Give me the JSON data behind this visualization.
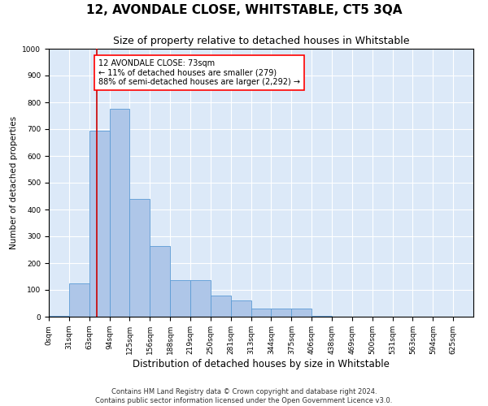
{
  "title": "12, AVONDALE CLOSE, WHITSTABLE, CT5 3QA",
  "subtitle": "Size of property relative to detached houses in Whitstable",
  "xlabel": "Distribution of detached houses by size in Whitstable",
  "ylabel": "Number of detached properties",
  "bar_color": "#aec6e8",
  "bar_edge_color": "#5b9bd5",
  "background_color": "#dce9f8",
  "grid_color": "#ffffff",
  "bin_labels": [
    "0sqm",
    "31sqm",
    "63sqm",
    "94sqm",
    "125sqm",
    "156sqm",
    "188sqm",
    "219sqm",
    "250sqm",
    "281sqm",
    "313sqm",
    "344sqm",
    "375sqm",
    "406sqm",
    "438sqm",
    "469sqm",
    "500sqm",
    "531sqm",
    "563sqm",
    "594sqm",
    "625sqm"
  ],
  "bar_values": [
    4,
    125,
    695,
    775,
    440,
    265,
    135,
    135,
    80,
    60,
    30,
    30,
    30,
    4,
    0,
    0,
    0,
    0,
    0,
    0,
    0
  ],
  "ylim": [
    0,
    1000
  ],
  "yticks": [
    0,
    100,
    200,
    300,
    400,
    500,
    600,
    700,
    800,
    900,
    1000
  ],
  "property_size": 73,
  "property_bin_index": 2,
  "property_line_label": "12 AVONDALE CLOSE: 73sqm",
  "annotation_line1": "← 11% of detached houses are smaller (279)",
  "annotation_line2": "88% of semi-detached houses are larger (2,292) →",
  "red_line_color": "#cc0000",
  "footnote1": "Contains HM Land Registry data © Crown copyright and database right 2024.",
  "footnote2": "Contains public sector information licensed under the Open Government Licence v3.0.",
  "title_fontsize": 11,
  "subtitle_fontsize": 9,
  "xlabel_fontsize": 8.5,
  "ylabel_fontsize": 7.5,
  "tick_fontsize": 6.5,
  "annotation_fontsize": 7,
  "footnote_fontsize": 6,
  "bin_width": 31
}
